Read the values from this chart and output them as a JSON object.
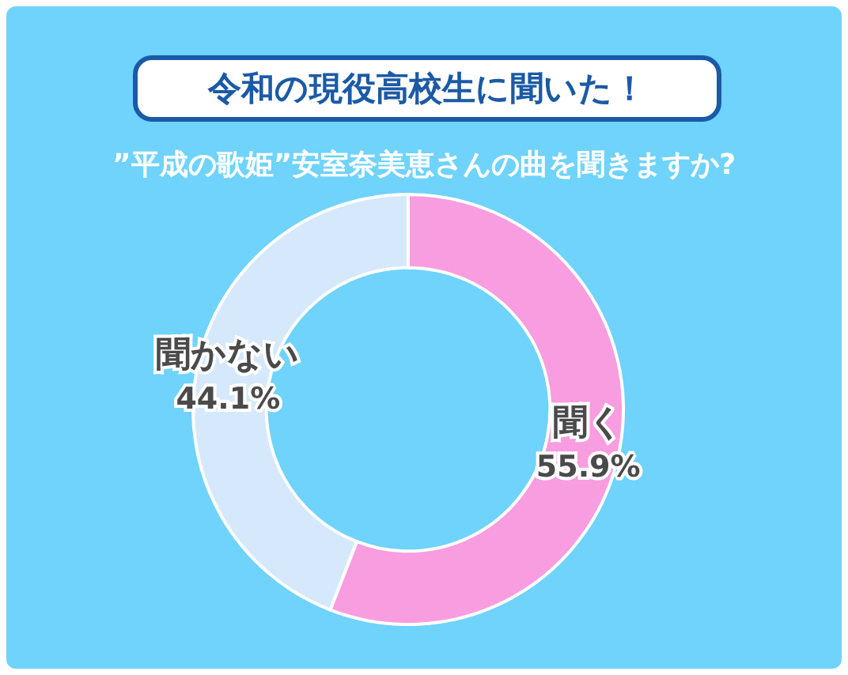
{
  "chart_data": {
    "type": "donut",
    "title": "令和の現役高校生に聞いた！",
    "subtitle": "”平成の歌姫”安室奈美恵さんの曲を聞きますか?",
    "categories": [
      "聞く",
      "聞かない"
    ],
    "values": [
      55.9,
      44.1
    ],
    "colors": [
      "#f89ddf",
      "#d6e8fb"
    ],
    "value_labels": [
      "55.9%",
      "44.1%"
    ],
    "legend": false
  }
}
